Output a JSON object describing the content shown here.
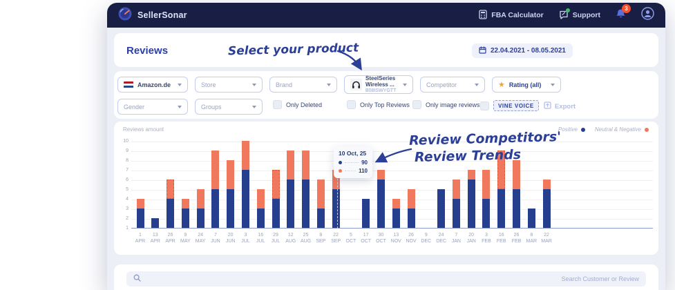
{
  "header": {
    "brand": "SellerSonar",
    "fba_calculator": "FBA Calculator",
    "support": "Support",
    "notifications_count": "3"
  },
  "page": {
    "title": "Reviews",
    "date_range": "22.04.2021 - 08.05.2021"
  },
  "annotations": {
    "select_product": "Select your product",
    "review_competitors": "Review Competitors'",
    "review_trends": "Review Trends"
  },
  "filters": {
    "marketplace": "Amazon.de",
    "store": "Store",
    "brand": "Brand",
    "product": {
      "title": "SteelSeries Wireless ...",
      "asin": "B08ISWYGTT"
    },
    "competitor": "Competitor",
    "rating": "Rating (all)",
    "gender": "Gender",
    "groups": "Groups",
    "checkboxes": [
      "Only Deleted",
      "Only Top Reviews",
      "Only image reviews"
    ],
    "vine_voice": "VINE VOICE",
    "export": "Export"
  },
  "chart_data": {
    "type": "bar",
    "stacked": true,
    "axis_label": "Reviews amount",
    "categories": [
      "1 APR",
      "13 APR",
      "26 APR",
      "9 MAY",
      "24 MAY",
      "7 JUN",
      "20 JUN",
      "3 JUL",
      "16 JUL",
      "29 JUL",
      "12 AUG",
      "25 AUG",
      "8 SEP",
      "22 SEP",
      "5 OCT",
      "17 OCT",
      "30 OCT",
      "13 NOV",
      "26 NOV",
      "9 DEC",
      "24 DEC",
      "7 JAN",
      "20 JAN",
      "3 FEB",
      "16 FEB",
      "26 FEB",
      "8 MAR",
      "22 MAR"
    ],
    "series": [
      {
        "name": "Positive",
        "color": "#253F8E",
        "values": [
          3,
          2,
          4,
          3,
          3,
          5,
          5,
          7,
          3,
          4,
          6,
          6,
          3,
          5,
          0,
          4,
          6,
          3,
          3,
          0,
          5,
          4,
          6,
          4,
          5,
          5,
          3,
          5
        ]
      },
      {
        "name": "Neutral & Negative",
        "color": "#F0785C",
        "values": [
          1,
          0,
          2,
          1,
          2,
          4,
          3,
          3,
          2,
          3,
          3,
          3,
          3,
          2,
          0,
          0,
          1,
          1,
          2,
          0,
          0,
          2,
          1,
          3,
          4,
          3,
          0,
          1
        ]
      }
    ],
    "dashed_indices": [
      2,
      9,
      24
    ],
    "ylim": [
      1,
      10
    ],
    "yticks": [
      1,
      2,
      3,
      4,
      5,
      6,
      7,
      8,
      9,
      10
    ],
    "legend_position": "top-right",
    "grid": true
  },
  "tooltip": {
    "title": "10 Oct, 25",
    "rows": [
      {
        "series": "Positive",
        "color": "#253F8E",
        "value": "90"
      },
      {
        "series": "Neutral & Negative",
        "color": "#F0785C",
        "value": "110"
      }
    ]
  },
  "search": {
    "placeholder": "Search Customer or Review"
  }
}
